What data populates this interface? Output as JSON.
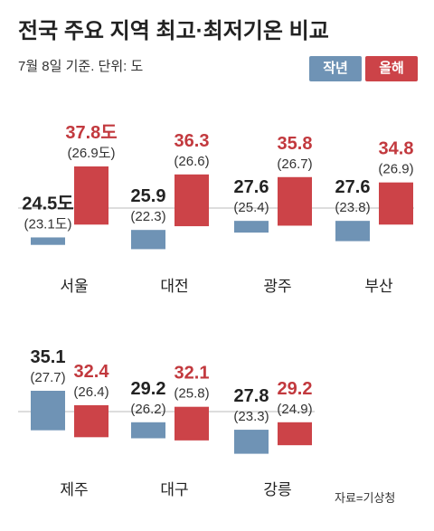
{
  "header": {
    "title": "전국 주요 지역 최고·최저기온 비교",
    "subtitle": "7월 8일 기준. 단위: 도",
    "source": "자료=기상청"
  },
  "legend": [
    {
      "name": "작년",
      "color": "#6f93b5"
    },
    {
      "name": "올해",
      "color": "#cc4348"
    }
  ],
  "chart_data": {
    "type": "bar",
    "unit": "도",
    "series": [
      {
        "name": "작년",
        "color": "#6f93b5"
      },
      {
        "name": "올해",
        "color": "#cc4348"
      }
    ],
    "cities": [
      {
        "name": "서울",
        "prev": {
          "max": 24.5,
          "min": 23.1,
          "max_label": "24.5도",
          "min_label": "(23.1도)"
        },
        "curr": {
          "max": 37.8,
          "min": 26.9,
          "max_label": "37.8도",
          "min_label": "(26.9도)"
        }
      },
      {
        "name": "대전",
        "prev": {
          "max": 25.9,
          "min": 22.3,
          "max_label": "25.9",
          "min_label": "(22.3)"
        },
        "curr": {
          "max": 36.3,
          "min": 26.6,
          "max_label": "36.3",
          "min_label": "(26.6)"
        }
      },
      {
        "name": "광주",
        "prev": {
          "max": 27.6,
          "min": 25.4,
          "max_label": "27.6",
          "min_label": "(25.4)"
        },
        "curr": {
          "max": 35.8,
          "min": 26.7,
          "max_label": "35.8",
          "min_label": "(26.7)"
        }
      },
      {
        "name": "부산",
        "prev": {
          "max": 27.6,
          "min": 23.8,
          "max_label": "27.6",
          "min_label": "(23.8)"
        },
        "curr": {
          "max": 34.8,
          "min": 26.9,
          "max_label": "34.8",
          "min_label": "(26.9)"
        }
      },
      {
        "name": "제주",
        "prev": {
          "max": 35.1,
          "min": 27.7,
          "max_label": "35.1",
          "min_label": "(27.7)"
        },
        "curr": {
          "max": 32.4,
          "min": 26.4,
          "max_label": "32.4",
          "min_label": "(26.4)"
        }
      },
      {
        "name": "대구",
        "prev": {
          "max": 29.2,
          "min": 26.2,
          "max_label": "29.2",
          "min_label": "(26.2)"
        },
        "curr": {
          "max": 32.1,
          "min": 25.8,
          "max_label": "32.1",
          "min_label": "(25.8)"
        }
      },
      {
        "name": "강릉",
        "prev": {
          "max": 27.8,
          "min": 23.3,
          "max_label": "27.8",
          "min_label": "(23.3)"
        },
        "curr": {
          "max": 29.2,
          "min": 24.9,
          "max_label": "29.2",
          "min_label": "(24.9)"
        }
      }
    ]
  }
}
